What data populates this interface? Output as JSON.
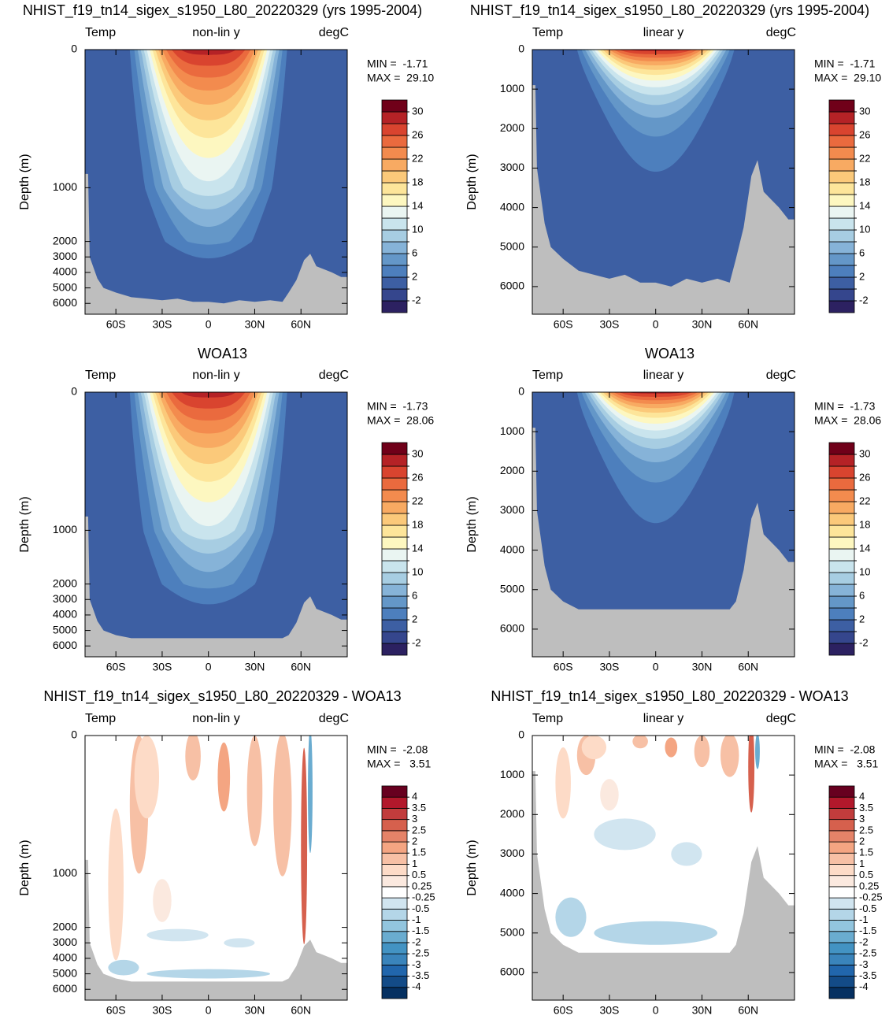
{
  "chart_data": [
    {
      "type": "contour",
      "title": "NHIST_f19_tn14_sigex_s1950_L80_20220329 (yrs 1995-2004)",
      "subtitle_left": "Temp",
      "subtitle_center": "non-lin y",
      "subtitle_right": "degC",
      "annotations": [
        "MIN =  -1.71",
        "MAX =  29.10"
      ],
      "ylabel": "Depth (m)",
      "yscale": "nonlinear",
      "xlim": [
        -80,
        90
      ],
      "xticks": [
        {
          "value": -60,
          "label": "60S"
        },
        {
          "value": -30,
          "label": "30S"
        },
        0,
        {
          "value": 30,
          "label": "30N"
        },
        {
          "value": 60,
          "label": "60N"
        }
      ],
      "ylim": [
        0,
        6700
      ],
      "yticks": [
        0,
        1000,
        2000,
        3000,
        4000,
        5000,
        6000
      ],
      "colorbar": {
        "levels": [
          -2,
          0,
          2,
          4,
          6,
          8,
          10,
          12,
          14,
          16,
          18,
          20,
          22,
          24,
          26,
          28,
          30
        ],
        "ticks": [
          30,
          26,
          22,
          18,
          14,
          10,
          6,
          2,
          -2
        ],
        "colors": [
          "#2c2161",
          "#35468d",
          "#3d5fa3",
          "#4d7fbd",
          "#6497c8",
          "#86b3d8",
          "#a7cde2",
          "#c9e4ed",
          "#eaf5f2",
          "#fdf7c0",
          "#fde59a",
          "#fbc97a",
          "#f8aa62",
          "#f38b4e",
          "#ea6a3e",
          "#d9442f",
          "#b52226",
          "#700019"
        ]
      }
    },
    {
      "type": "contour",
      "title": "NHIST_f19_tn14_sigex_s1950_L80_20220329 (yrs 1995-2004)",
      "subtitle_left": "Temp",
      "subtitle_center": "linear y",
      "subtitle_right": "degC",
      "annotations": [
        "MIN =  -1.71",
        "MAX =  29.10"
      ],
      "ylabel": "Depth (m)",
      "yscale": "linear",
      "xlim": [
        -80,
        90
      ],
      "xticks": [
        {
          "value": -60,
          "label": "60S"
        },
        {
          "value": -30,
          "label": "30S"
        },
        0,
        {
          "value": 30,
          "label": "30N"
        },
        {
          "value": 60,
          "label": "60N"
        }
      ],
      "ylim": [
        0,
        6700
      ],
      "yticks": [
        0,
        1000,
        2000,
        3000,
        4000,
        5000,
        6000
      ],
      "colorbar": {
        "levels": [
          -2,
          0,
          2,
          4,
          6,
          8,
          10,
          12,
          14,
          16,
          18,
          20,
          22,
          24,
          26,
          28,
          30
        ],
        "ticks": [
          30,
          26,
          22,
          18,
          14,
          10,
          6,
          2,
          -2
        ],
        "colors": [
          "#2c2161",
          "#35468d",
          "#3d5fa3",
          "#4d7fbd",
          "#6497c8",
          "#86b3d8",
          "#a7cde2",
          "#c9e4ed",
          "#eaf5f2",
          "#fdf7c0",
          "#fde59a",
          "#fbc97a",
          "#f8aa62",
          "#f38b4e",
          "#ea6a3e",
          "#d9442f",
          "#b52226",
          "#700019"
        ]
      }
    },
    {
      "type": "contour",
      "title": "WOA13",
      "subtitle_left": "Temp",
      "subtitle_center": "non-lin y",
      "subtitle_right": "degC",
      "annotations": [
        "MIN =  -1.73",
        "MAX =  28.06"
      ],
      "ylabel": "Depth (m)",
      "yscale": "nonlinear",
      "xlim": [
        -80,
        90
      ],
      "xticks": [
        {
          "value": -60,
          "label": "60S"
        },
        {
          "value": -30,
          "label": "30S"
        },
        0,
        {
          "value": 30,
          "label": "30N"
        },
        {
          "value": 60,
          "label": "60N"
        }
      ],
      "ylim": [
        0,
        6700
      ],
      "yticks": [
        0,
        1000,
        2000,
        3000,
        4000,
        5000,
        6000
      ],
      "colorbar": {
        "levels": [
          -2,
          0,
          2,
          4,
          6,
          8,
          10,
          12,
          14,
          16,
          18,
          20,
          22,
          24,
          26,
          28,
          30
        ],
        "ticks": [
          30,
          26,
          22,
          18,
          14,
          10,
          6,
          2,
          -2
        ],
        "colors": [
          "#2c2161",
          "#35468d",
          "#3d5fa3",
          "#4d7fbd",
          "#6497c8",
          "#86b3d8",
          "#a7cde2",
          "#c9e4ed",
          "#eaf5f2",
          "#fdf7c0",
          "#fde59a",
          "#fbc97a",
          "#f8aa62",
          "#f38b4e",
          "#ea6a3e",
          "#d9442f",
          "#b52226",
          "#700019"
        ]
      }
    },
    {
      "type": "contour",
      "title": "WOA13",
      "subtitle_left": "Temp",
      "subtitle_center": "linear y",
      "subtitle_right": "degC",
      "annotations": [
        "MIN =  -1.73",
        "MAX =  28.06"
      ],
      "ylabel": "Depth (m)",
      "yscale": "linear",
      "xlim": [
        -80,
        90
      ],
      "xticks": [
        {
          "value": -60,
          "label": "60S"
        },
        {
          "value": -30,
          "label": "30S"
        },
        0,
        {
          "value": 30,
          "label": "30N"
        },
        {
          "value": 60,
          "label": "60N"
        }
      ],
      "ylim": [
        0,
        6700
      ],
      "yticks": [
        0,
        1000,
        2000,
        3000,
        4000,
        5000,
        6000
      ],
      "colorbar": {
        "levels": [
          -2,
          0,
          2,
          4,
          6,
          8,
          10,
          12,
          14,
          16,
          18,
          20,
          22,
          24,
          26,
          28,
          30
        ],
        "ticks": [
          30,
          26,
          22,
          18,
          14,
          10,
          6,
          2,
          -2
        ],
        "colors": [
          "#2c2161",
          "#35468d",
          "#3d5fa3",
          "#4d7fbd",
          "#6497c8",
          "#86b3d8",
          "#a7cde2",
          "#c9e4ed",
          "#eaf5f2",
          "#fdf7c0",
          "#fde59a",
          "#fbc97a",
          "#f8aa62",
          "#f38b4e",
          "#ea6a3e",
          "#d9442f",
          "#b52226",
          "#700019"
        ]
      }
    },
    {
      "type": "contour",
      "title": "NHIST_f19_tn14_sigex_s1950_L80_20220329 - WOA13",
      "subtitle_left": "Temp",
      "subtitle_center": "non-lin y",
      "subtitle_right": "degC",
      "annotations": [
        "MIN =  -2.08",
        "MAX =   3.51"
      ],
      "ylabel": "Depth (m)",
      "yscale": "nonlinear",
      "xlim": [
        -80,
        90
      ],
      "xticks": [
        {
          "value": -60,
          "label": "60S"
        },
        {
          "value": -30,
          "label": "30S"
        },
        0,
        {
          "value": 30,
          "label": "30N"
        },
        {
          "value": 60,
          "label": "60N"
        }
      ],
      "ylim": [
        0,
        6700
      ],
      "yticks": [
        0,
        1000,
        2000,
        3000,
        4000,
        5000,
        6000
      ],
      "colorbar": {
        "levels": [
          -4,
          -3.5,
          -3,
          -2.5,
          -2,
          -1.5,
          -1,
          -0.5,
          -0.25,
          0.25,
          0.5,
          1,
          1.5,
          2,
          2.5,
          3,
          3.5,
          4
        ],
        "ticks": [
          4,
          3.5,
          3,
          2.5,
          2,
          1.5,
          1,
          0.5,
          0.25,
          -0.25,
          -0.5,
          -1,
          -1.5,
          -2,
          -2.5,
          -3,
          -3.5,
          -4
        ],
        "colors": [
          "#053061",
          "#134b87",
          "#2166ac",
          "#3a84bb",
          "#4393c3",
          "#6aacd0",
          "#92c5de",
          "#b4d6e8",
          "#d1e5f0",
          "#ffffff",
          "#fbe9df",
          "#fddbc7",
          "#f7c0a5",
          "#f4a582",
          "#e58368",
          "#d6604d",
          "#c13c3c",
          "#b2182b",
          "#67001f"
        ]
      }
    },
    {
      "type": "contour",
      "title": "NHIST_f19_tn14_sigex_s1950_L80_20220329 - WOA13",
      "subtitle_left": "Temp",
      "subtitle_center": "linear y",
      "subtitle_right": "degC",
      "annotations": [
        "MIN =  -2.08",
        "MAX =   3.51"
      ],
      "ylabel": "Depth (m)",
      "yscale": "linear",
      "xlim": [
        -80,
        90
      ],
      "xticks": [
        {
          "value": -60,
          "label": "60S"
        },
        {
          "value": -30,
          "label": "30S"
        },
        0,
        {
          "value": 30,
          "label": "30N"
        },
        {
          "value": 60,
          "label": "60N"
        }
      ],
      "ylim": [
        0,
        6700
      ],
      "yticks": [
        0,
        1000,
        2000,
        3000,
        4000,
        5000,
        6000
      ],
      "colorbar": {
        "levels": [
          -4,
          -3.5,
          -3,
          -2.5,
          -2,
          -1.5,
          -1,
          -0.5,
          -0.25,
          0.25,
          0.5,
          1,
          1.5,
          2,
          2.5,
          3,
          3.5,
          4
        ],
        "ticks": [
          4,
          3.5,
          3,
          2.5,
          2,
          1.5,
          1,
          0.5,
          0.25,
          -0.25,
          -0.5,
          -1,
          -1.5,
          -2,
          -2.5,
          -3,
          -3.5,
          -4
        ],
        "colors": [
          "#053061",
          "#134b87",
          "#2166ac",
          "#3a84bb",
          "#4393c3",
          "#6aacd0",
          "#92c5de",
          "#b4d6e8",
          "#d1e5f0",
          "#ffffff",
          "#fbe9df",
          "#fddbc7",
          "#f7c0a5",
          "#f4a582",
          "#e58368",
          "#d6604d",
          "#c13c3c",
          "#b2182b",
          "#67001f"
        ]
      }
    }
  ]
}
